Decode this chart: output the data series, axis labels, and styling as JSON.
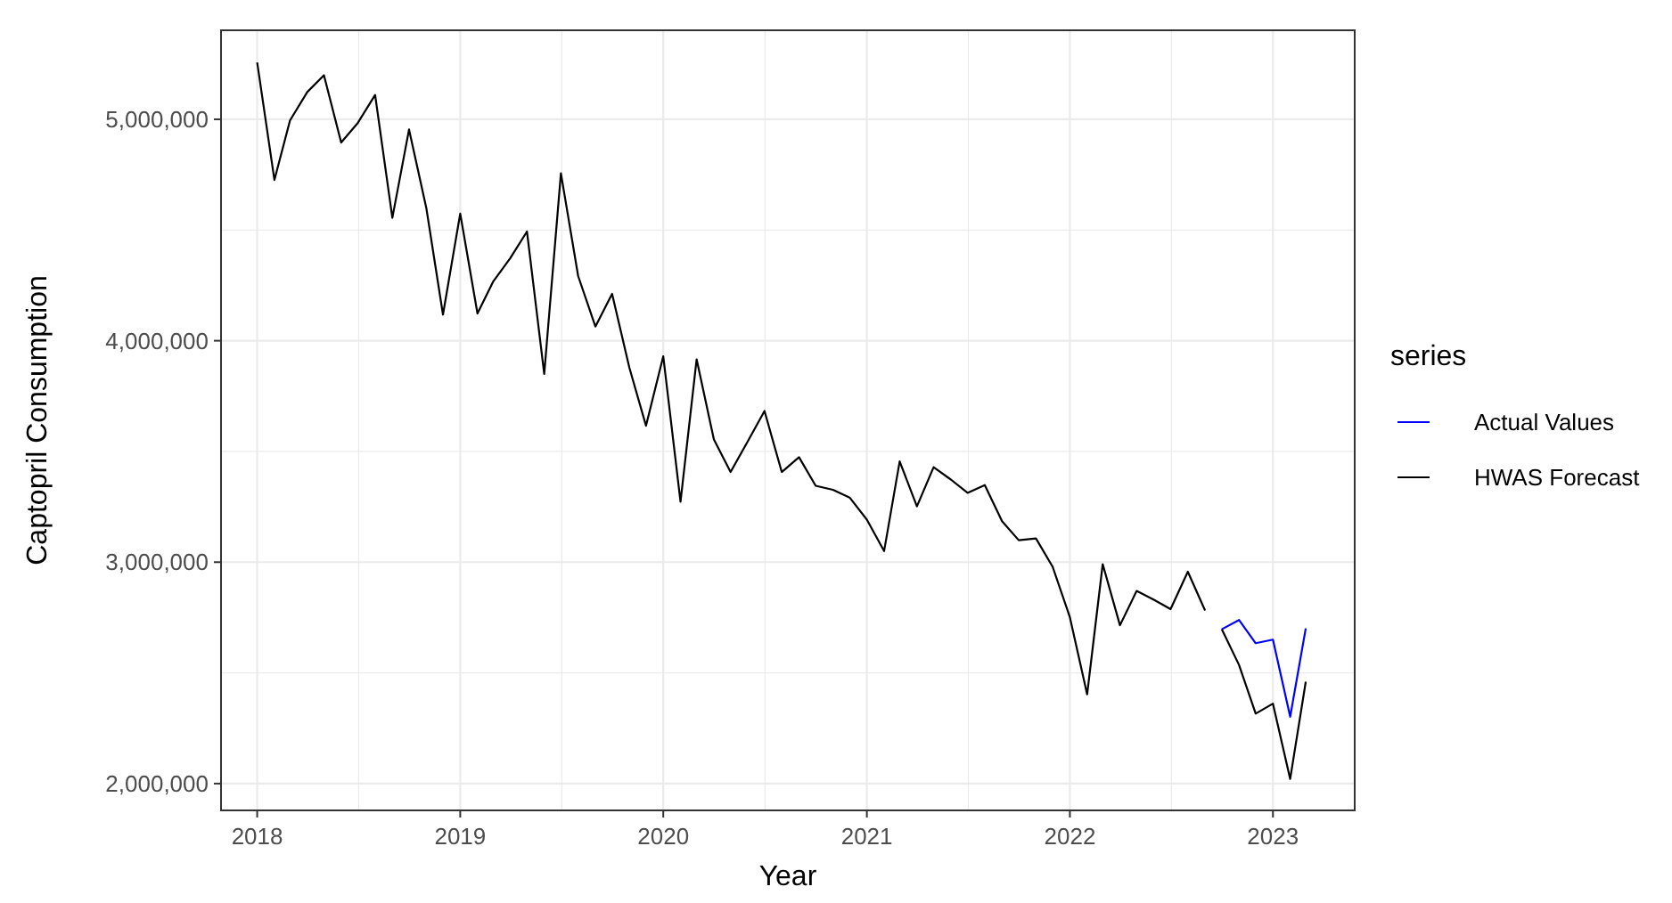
{
  "chart_data": {
    "type": "line",
    "xlabel": "Year",
    "ylabel": "Captopril Consumption",
    "legend_title": "series",
    "legend": "right",
    "grid": true,
    "xlim": [
      "2017-10-28",
      "2023-05-28"
    ],
    "xticks": [
      {
        "value": "2018-01-01",
        "label": "2018"
      },
      {
        "value": "2019-01-01",
        "label": "2019"
      },
      {
        "value": "2020-01-01",
        "label": "2020"
      },
      {
        "value": "2021-01-01",
        "label": "2021"
      },
      {
        "value": "2022-01-01",
        "label": "2022"
      },
      {
        "value": "2023-01-01",
        "label": "2023"
      }
    ],
    "ylim": [
      1879000,
      5402000
    ],
    "yticks": [
      {
        "value": 2000000,
        "label": "2,000,000"
      },
      {
        "value": 3000000,
        "label": "3,000,000"
      },
      {
        "value": 4000000,
        "label": "4,000,000"
      },
      {
        "value": 5000000,
        "label": "5,000,000"
      }
    ],
    "series": [
      {
        "color": "#000000",
        "x": [
          "2018-01",
          "2018-02",
          "2018-03",
          "2018-04",
          "2018-05",
          "2018-06",
          "2018-07",
          "2018-08",
          "2018-09",
          "2018-10",
          "2018-11",
          "2018-12",
          "2019-01",
          "2019-02",
          "2019-03",
          "2019-04",
          "2019-05",
          "2019-06",
          "2019-07",
          "2019-08",
          "2019-09",
          "2019-10",
          "2019-11",
          "2019-12",
          "2020-01",
          "2020-02",
          "2020-03",
          "2020-04",
          "2020-05",
          "2020-06",
          "2020-07",
          "2020-08",
          "2020-09",
          "2020-10",
          "2020-11",
          "2020-12",
          "2021-01",
          "2021-02",
          "2021-03",
          "2021-04",
          "2021-05",
          "2021-06",
          "2021-07",
          "2021-08",
          "2021-09",
          "2021-10",
          "2021-11",
          "2021-12",
          "2022-01",
          "2022-02",
          "2022-03",
          "2022-04",
          "2022-05",
          "2022-06",
          "2022-07",
          "2022-08",
          "2022-09"
        ],
        "values": [
          5257000,
          4726000,
          4995000,
          5123000,
          5199000,
          4895000,
          4984000,
          5110000,
          4555000,
          4954000,
          4600000,
          4118000,
          4574000,
          4123000,
          4266000,
          4373000,
          4493000,
          3850000,
          4756000,
          4292000,
          4064000,
          4212000,
          3879000,
          3616000,
          3930000,
          3273000,
          3916000,
          3554000,
          3407000,
          3546000,
          3683000,
          3407000,
          3474000,
          3345000,
          3327000,
          3292000,
          3192000,
          3050000,
          3455000,
          3252000,
          3429000,
          3373000,
          3313000,
          3348000,
          3185000,
          3099000,
          3107000,
          2979000,
          2751000,
          2403000,
          2991000,
          2715000,
          2870000,
          2830000,
          2788000,
          2957000,
          2782000
        ]
      },
      {
        "name": "Actual Values",
        "color": "#0000ff",
        "x": [
          "2022-10",
          "2022-11",
          "2022-12",
          "2023-01",
          "2023-02",
          "2023-03"
        ],
        "values": [
          2697000,
          2739000,
          2634000,
          2650000,
          2302000,
          2701000
        ]
      },
      {
        "name": "HWAS Forecast",
        "color": "#000000",
        "x": [
          "2022-10",
          "2022-11",
          "2022-12",
          "2023-01",
          "2023-02",
          "2023-03"
        ],
        "values": [
          2697000,
          2536000,
          2316000,
          2361000,
          2021000,
          2460000
        ]
      }
    ]
  }
}
